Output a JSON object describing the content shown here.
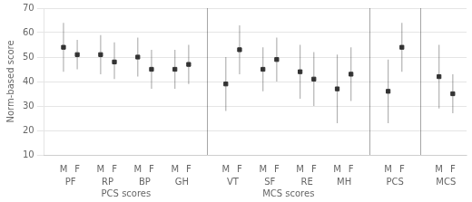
{
  "chart_data": {
    "type": "errorbar",
    "ylabel": "Norm-based score",
    "ylim": [
      10,
      70
    ],
    "yticks": [
      10,
      20,
      30,
      40,
      50,
      60,
      70
    ],
    "grid": true,
    "color": "#333333",
    "sections": [
      {
        "label": "PCS scores",
        "groups": [
          {
            "label": "PF",
            "categories": [
              "M",
              "F"
            ],
            "values": [
              54,
              51
            ],
            "low": [
              44,
              45
            ],
            "high": [
              64,
              57
            ]
          },
          {
            "label": "RP",
            "categories": [
              "M",
              "F"
            ],
            "values": [
              51,
              48
            ],
            "low": [
              43,
              41
            ],
            "high": [
              59,
              56
            ]
          },
          {
            "label": "BP",
            "categories": [
              "M",
              "F"
            ],
            "values": [
              50,
              45
            ],
            "low": [
              42,
              37
            ],
            "high": [
              58,
              53
            ]
          },
          {
            "label": "GH",
            "categories": [
              "M",
              "F"
            ],
            "values": [
              45,
              47
            ],
            "low": [
              37,
              39
            ],
            "high": [
              53,
              55
            ]
          }
        ]
      },
      {
        "label": "MCS scores",
        "groups": [
          {
            "label": "VT",
            "categories": [
              "M",
              "F"
            ],
            "values": [
              39,
              53
            ],
            "low": [
              28,
              43
            ],
            "high": [
              50,
              63
            ]
          },
          {
            "label": "SF",
            "categories": [
              "M",
              "F"
            ],
            "values": [
              45,
              49
            ],
            "low": [
              36,
              40
            ],
            "high": [
              54,
              58
            ]
          },
          {
            "label": "RE",
            "categories": [
              "M",
              "F"
            ],
            "values": [
              44,
              41
            ],
            "low": [
              33,
              30
            ],
            "high": [
              55,
              52
            ]
          },
          {
            "label": "MH",
            "categories": [
              "M",
              "F"
            ],
            "values": [
              37,
              43
            ],
            "low": [
              23,
              32
            ],
            "high": [
              51,
              54
            ]
          }
        ]
      },
      {
        "groups": [
          {
            "label": "PCS",
            "categories": [
              "M",
              "F"
            ],
            "values": [
              36,
              54
            ],
            "low": [
              23,
              44
            ],
            "high": [
              49,
              64
            ]
          }
        ]
      },
      {
        "groups": [
          {
            "label": "MCS",
            "categories": [
              "M",
              "F"
            ],
            "values": [
              42,
              35
            ],
            "low": [
              29,
              27
            ],
            "high": [
              55,
              43
            ]
          }
        ]
      }
    ]
  }
}
